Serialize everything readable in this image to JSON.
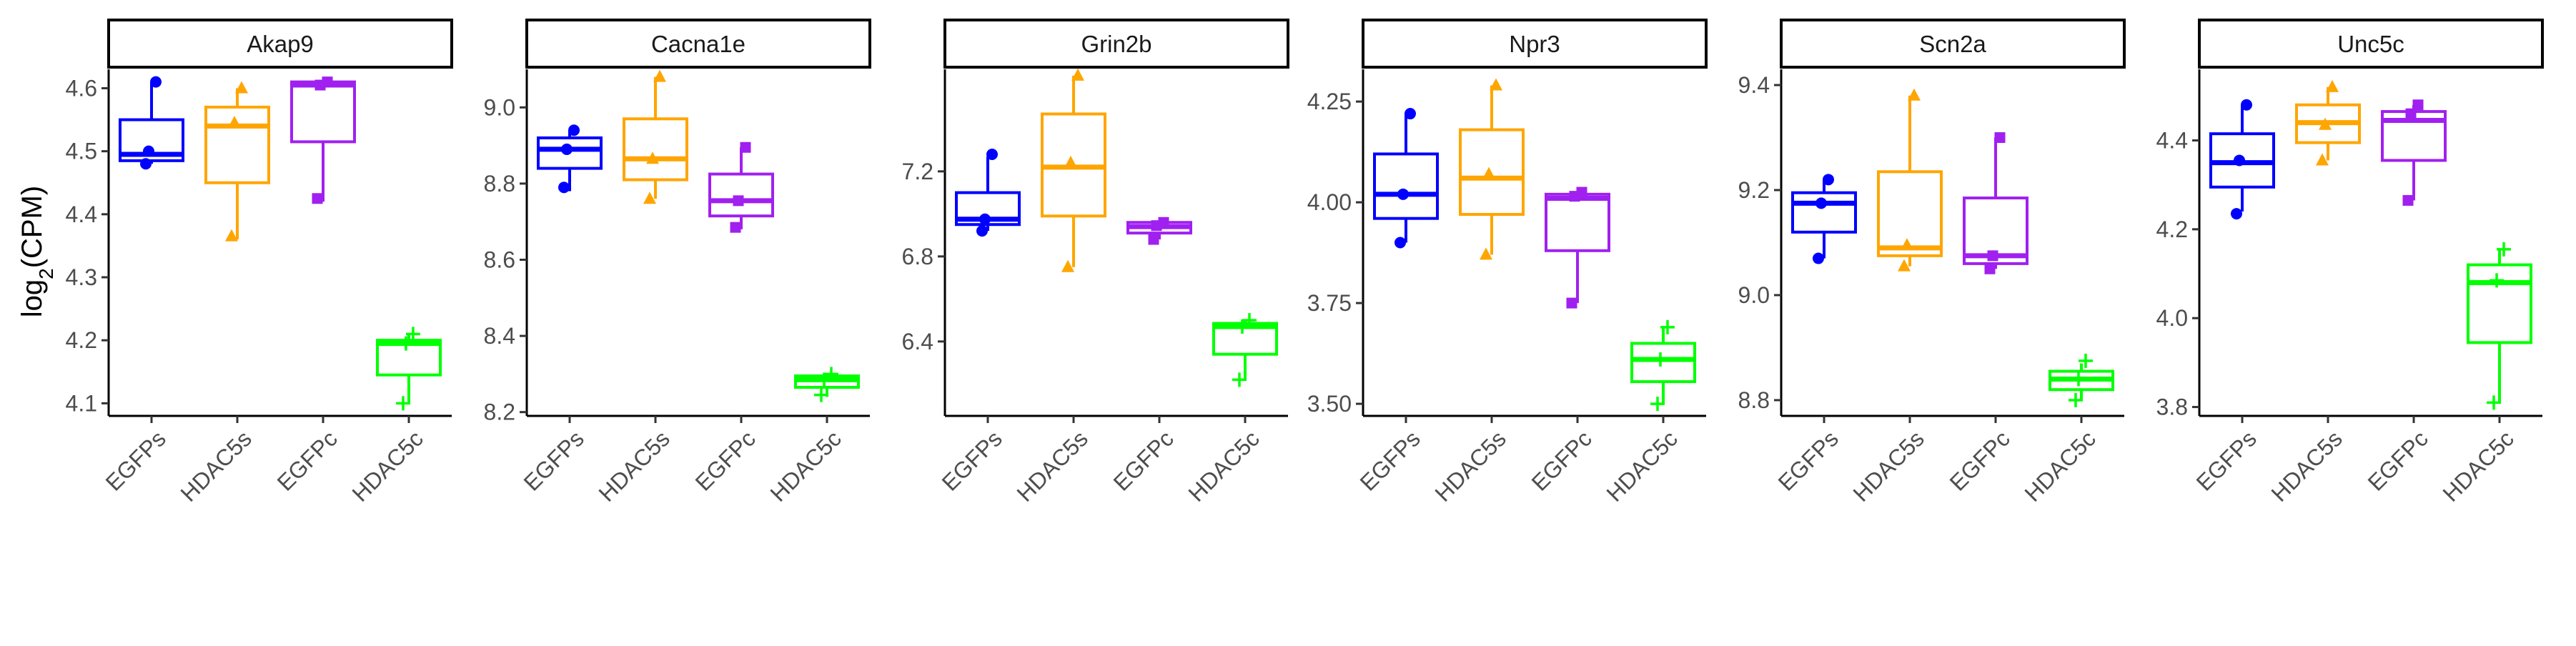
{
  "ylabel": "log2(CPM)",
  "ylabel_main": "log",
  "ylabel_sub": "2",
  "ylabel_tail": "(CPM)",
  "groups": [
    "EGFPs",
    "HDAC5s",
    "EGFPc",
    "HDAC5c"
  ],
  "colors": {
    "EGFPs": "#0000ff",
    "HDAC5s": "#ffa500",
    "EGFPc": "#a020f0",
    "HDAC5c": "#00ff00"
  },
  "markers": {
    "EGFPs": "circle",
    "HDAC5s": "triangle",
    "EGFPc": "square",
    "HDAC5c": "plus"
  },
  "chart_data": [
    {
      "type": "boxplot",
      "facet": "Akap9",
      "ylim": [
        4.08,
        4.63
      ],
      "yticks": [
        4.1,
        4.2,
        4.3,
        4.4,
        4.5,
        4.6
      ],
      "series": [
        {
          "name": "EGFPs",
          "min": 4.48,
          "q1": 4.485,
          "median": 4.495,
          "q3": 4.55,
          "max": 4.61,
          "points": [
            4.61,
            4.5,
            4.48
          ]
        },
        {
          "name": "HDAC5s",
          "min": 4.36,
          "q1": 4.45,
          "median": 4.54,
          "q3": 4.57,
          "max": 4.6,
          "points": [
            4.6,
            4.545,
            4.365
          ]
        },
        {
          "name": "EGFPc",
          "min": 4.42,
          "q1": 4.515,
          "median": 4.605,
          "q3": 4.61,
          "max": 4.61,
          "points": [
            4.61,
            4.605,
            4.425
          ]
        },
        {
          "name": "HDAC5c",
          "min": 4.1,
          "q1": 4.145,
          "median": 4.195,
          "q3": 4.2,
          "max": 4.21,
          "points": [
            4.21,
            4.195,
            4.1
          ]
        }
      ]
    },
    {
      "type": "boxplot",
      "facet": "Cacna1e",
      "ylim": [
        8.19,
        9.1
      ],
      "yticks": [
        8.2,
        8.4,
        8.6,
        8.8,
        9.0
      ],
      "series": [
        {
          "name": "EGFPs",
          "min": 8.78,
          "q1": 8.84,
          "median": 8.89,
          "q3": 8.92,
          "max": 8.94,
          "points": [
            8.94,
            8.89,
            8.79
          ]
        },
        {
          "name": "HDAC5s",
          "min": 8.76,
          "q1": 8.81,
          "median": 8.865,
          "q3": 8.97,
          "max": 9.08,
          "points": [
            9.08,
            8.865,
            8.76
          ]
        },
        {
          "name": "EGFPc",
          "min": 8.68,
          "q1": 8.715,
          "median": 8.755,
          "q3": 8.825,
          "max": 8.895,
          "points": [
            8.895,
            8.755,
            8.685
          ]
        },
        {
          "name": "HDAC5c",
          "min": 8.24,
          "q1": 8.265,
          "median": 8.285,
          "q3": 8.295,
          "max": 8.3,
          "points": [
            8.3,
            8.285,
            8.245
          ]
        }
      ]
    },
    {
      "type": "boxplot",
      "facet": "Grin2b",
      "ylim": [
        6.05,
        7.68
      ],
      "yticks": [
        6.4,
        6.8,
        7.2
      ],
      "series": [
        {
          "name": "EGFPs",
          "min": 6.92,
          "q1": 6.95,
          "median": 6.975,
          "q3": 7.1,
          "max": 7.27,
          "points": [
            7.28,
            6.975,
            6.92
          ]
        },
        {
          "name": "HDAC5s",
          "min": 6.75,
          "q1": 6.99,
          "median": 7.22,
          "q3": 7.47,
          "max": 7.65,
          "points": [
            7.65,
            7.24,
            6.75
          ]
        },
        {
          "name": "EGFPc",
          "min": 6.88,
          "q1": 6.91,
          "median": 6.94,
          "q3": 6.96,
          "max": 6.96,
          "points": [
            6.96,
            6.945,
            6.88
          ]
        },
        {
          "name": "HDAC5c",
          "min": 6.22,
          "q1": 6.34,
          "median": 6.47,
          "q3": 6.485,
          "max": 6.5,
          "points": [
            6.5,
            6.47,
            6.22
          ]
        }
      ]
    },
    {
      "type": "boxplot",
      "facet": "Npr3",
      "ylim": [
        3.47,
        4.33
      ],
      "yticks": [
        3.5,
        3.75,
        4.0,
        4.25
      ],
      "series": [
        {
          "name": "EGFPs",
          "min": 3.9,
          "q1": 3.96,
          "median": 4.02,
          "q3": 4.12,
          "max": 4.22,
          "points": [
            4.22,
            4.02,
            3.9
          ]
        },
        {
          "name": "HDAC5s",
          "min": 3.87,
          "q1": 3.97,
          "median": 4.06,
          "q3": 4.18,
          "max": 4.29,
          "points": [
            4.29,
            4.07,
            3.87
          ]
        },
        {
          "name": "EGFPc",
          "min": 3.75,
          "q1": 3.88,
          "median": 4.01,
          "q3": 4.02,
          "max": 4.025,
          "points": [
            4.025,
            4.015,
            3.75
          ]
        },
        {
          "name": "HDAC5c",
          "min": 3.5,
          "q1": 3.555,
          "median": 3.61,
          "q3": 3.65,
          "max": 3.69,
          "points": [
            3.69,
            3.61,
            3.5
          ]
        }
      ]
    },
    {
      "type": "boxplot",
      "facet": "Scn2a",
      "ylim": [
        8.77,
        9.43
      ],
      "yticks": [
        8.8,
        9.0,
        9.2,
        9.4
      ],
      "series": [
        {
          "name": "EGFPs",
          "min": 9.07,
          "q1": 9.12,
          "median": 9.175,
          "q3": 9.195,
          "max": 9.22,
          "points": [
            9.22,
            9.175,
            9.07
          ]
        },
        {
          "name": "HDAC5s",
          "min": 9.055,
          "q1": 9.075,
          "median": 9.09,
          "q3": 9.235,
          "max": 9.38,
          "points": [
            9.38,
            9.095,
            9.055
          ]
        },
        {
          "name": "EGFPc",
          "min": 9.05,
          "q1": 9.06,
          "median": 9.075,
          "q3": 9.185,
          "max": 9.3,
          "points": [
            9.3,
            9.075,
            9.05
          ]
        },
        {
          "name": "HDAC5c",
          "min": 8.8,
          "q1": 8.82,
          "median": 8.84,
          "q3": 8.855,
          "max": 8.87,
          "points": [
            8.875,
            8.84,
            8.8
          ]
        }
      ]
    },
    {
      "type": "boxplot",
      "facet": "Unc5c",
      "ylim": [
        3.78,
        4.56
      ],
      "yticks": [
        3.8,
        4.0,
        4.2,
        4.4
      ],
      "series": [
        {
          "name": "EGFPs",
          "min": 4.24,
          "q1": 4.295,
          "median": 4.35,
          "q3": 4.415,
          "max": 4.48,
          "points": [
            4.48,
            4.355,
            4.235
          ]
        },
        {
          "name": "HDAC5s",
          "min": 4.355,
          "q1": 4.395,
          "median": 4.44,
          "q3": 4.48,
          "max": 4.52,
          "points": [
            4.52,
            4.435,
            4.355
          ]
        },
        {
          "name": "EGFPc",
          "min": 4.265,
          "q1": 4.355,
          "median": 4.445,
          "q3": 4.465,
          "max": 4.48,
          "points": [
            4.48,
            4.46,
            4.265
          ]
        },
        {
          "name": "HDAC5c",
          "min": 3.81,
          "q1": 3.945,
          "median": 4.08,
          "q3": 4.12,
          "max": 4.155,
          "points": [
            4.155,
            4.085,
            3.81
          ]
        }
      ]
    }
  ]
}
